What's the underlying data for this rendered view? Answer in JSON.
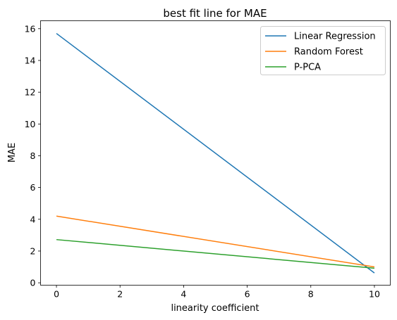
{
  "chart_data": {
    "type": "line",
    "title": "best fit line for MAE",
    "xlabel": "linearity coefficient",
    "ylabel": "MAE",
    "xlim": [
      -0.5,
      10.5
    ],
    "ylim": [
      -0.15,
      16.5
    ],
    "xticks": [
      0,
      2,
      4,
      6,
      8,
      10
    ],
    "yticks": [
      0,
      2,
      4,
      6,
      8,
      10,
      12,
      14,
      16
    ],
    "grid": false,
    "legend_position": "top-right",
    "series": [
      {
        "name": "Linear Regression",
        "color": "#1f77b4",
        "x": [
          0,
          10
        ],
        "y": [
          15.7,
          0.62
        ]
      },
      {
        "name": "Random Forest",
        "color": "#ff7f0e",
        "x": [
          0,
          10
        ],
        "y": [
          4.2,
          1.0
        ]
      },
      {
        "name": "P-PCA",
        "color": "#2ca02c",
        "x": [
          0,
          10
        ],
        "y": [
          2.72,
          0.92
        ]
      }
    ]
  }
}
